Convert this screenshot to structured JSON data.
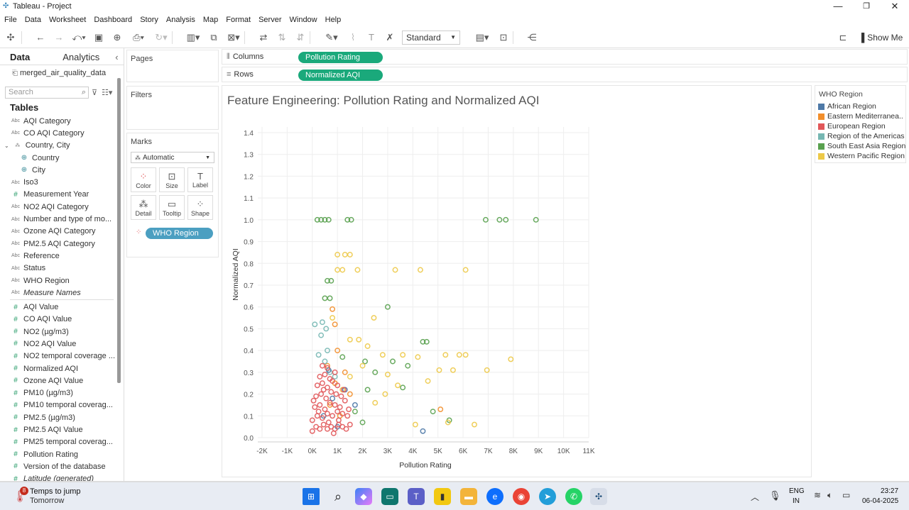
{
  "window": {
    "title": "Tableau - Project",
    "minimize": "—",
    "maximize": "❐",
    "close": "✕"
  },
  "menu": [
    "File",
    "Data",
    "Worksheet",
    "Dashboard",
    "Story",
    "Analysis",
    "Map",
    "Format",
    "Server",
    "Window",
    "Help"
  ],
  "toolbar": {
    "fit": "Standard",
    "show_me": "Show Me"
  },
  "left": {
    "tab_data": "Data",
    "tab_analytics": "Analytics",
    "collapse": "‹",
    "datasource": "merged_air_quality_data",
    "search_placeholder": "Search",
    "tables_label": "Tables",
    "dimensions": [
      {
        "type": "abc",
        "name": "AQI Category"
      },
      {
        "type": "abc",
        "name": "CO AQI Category"
      },
      {
        "type": "hier",
        "name": "Country, City"
      },
      {
        "type": "geo",
        "name": "Country"
      },
      {
        "type": "geo",
        "name": "City"
      },
      {
        "type": "abc",
        "name": "Iso3"
      },
      {
        "type": "hash",
        "name": "Measurement Year"
      },
      {
        "type": "abc",
        "name": "NO2 AQI Category"
      },
      {
        "type": "abc",
        "name": "Number and type of mo..."
      },
      {
        "type": "abc",
        "name": "Ozone AQI Category"
      },
      {
        "type": "abc",
        "name": "PM2.5 AQI Category"
      },
      {
        "type": "abc",
        "name": "Reference"
      },
      {
        "type": "abc",
        "name": "Status"
      },
      {
        "type": "abc",
        "name": "WHO Region"
      },
      {
        "type": "abc",
        "name": "Measure Names"
      }
    ],
    "measures": [
      "AQI Value",
      "CO AQI Value",
      "NO2 (µg/m3)",
      "NO2 AQI Value",
      "NO2 temporal coverage ...",
      "Normalized AQI",
      "Ozone AQI Value",
      "PM10 (µg/m3)",
      "PM10 temporal coverag...",
      "PM2.5 (µg/m3)",
      "PM2.5 AQI Value",
      "PM25 temporal coverag...",
      "Pollution Rating",
      "Version of the database",
      "Latitude (generated)"
    ]
  },
  "cards": {
    "pages": "Pages",
    "filters": "Filters",
    "marks": "Marks",
    "mark_type": "Automatic",
    "buttons": [
      "Color",
      "Size",
      "Label",
      "Detail",
      "Tooltip",
      "Shape"
    ],
    "color_pill": "WHO Region"
  },
  "shelves": {
    "columns_label": "Columns",
    "columns_pill": "Pollution Rating",
    "rows_label": "Rows",
    "rows_pill": "Normalized AQI"
  },
  "legend": {
    "title": "WHO Region",
    "items": [
      {
        "name": "African Region",
        "color": "#4e79a7"
      },
      {
        "name": "Eastern Mediterranea..",
        "color": "#f28e2b"
      },
      {
        "name": "European Region",
        "color": "#e15759"
      },
      {
        "name": "Region of the Americas",
        "color": "#76b7b2"
      },
      {
        "name": "South East Asia Region",
        "color": "#59a14f"
      },
      {
        "name": "Western Pacific Region",
        "color": "#edc948"
      }
    ]
  },
  "chart_data": {
    "type": "scatter",
    "title": "Feature Engineering: Pollution Rating and Normalized AQI",
    "xlabel": "Pollution Rating",
    "ylabel": "Normalized AQI",
    "xlim": [
      -2000,
      11000
    ],
    "ylim": [
      0,
      1.4
    ],
    "x_ticks": [
      "-2K",
      "-1K",
      "0K",
      "1K",
      "2K",
      "3K",
      "4K",
      "5K",
      "6K",
      "7K",
      "8K",
      "9K",
      "10K",
      "11K"
    ],
    "x_tick_values": [
      -2000,
      -1000,
      0,
      1000,
      2000,
      3000,
      4000,
      5000,
      6000,
      7000,
      8000,
      9000,
      10000,
      11000
    ],
    "y_ticks": [
      0.0,
      0.1,
      0.2,
      0.3,
      0.4,
      0.5,
      0.6,
      0.7,
      0.8,
      0.9,
      1.0,
      1.1,
      1.2,
      1.3,
      1.4
    ],
    "y_tick_labels": [
      "0.0",
      "0.1",
      "0.2",
      "0.3",
      "0.4",
      "0.5",
      "0.6",
      "0.7",
      "0.8",
      "0.9",
      "1.0",
      "1.1",
      "1.2",
      "1.3",
      "1.4"
    ],
    "grid": true,
    "marker": "open-circle",
    "series": [
      {
        "name": "South East Asia Region",
        "color": "#59a14f",
        "points": [
          [
            200,
            1.0
          ],
          [
            350,
            1.0
          ],
          [
            500,
            1.0
          ],
          [
            650,
            1.0
          ],
          [
            1400,
            1.0
          ],
          [
            1550,
            1.0
          ],
          [
            6900,
            1.0
          ],
          [
            7450,
            1.0
          ],
          [
            7700,
            1.0
          ],
          [
            8900,
            1.0
          ],
          [
            600,
            0.72
          ],
          [
            750,
            0.72
          ],
          [
            500,
            0.64
          ],
          [
            700,
            0.64
          ],
          [
            3000,
            0.6
          ],
          [
            4400,
            0.44
          ],
          [
            4550,
            0.44
          ],
          [
            1200,
            0.37
          ],
          [
            2100,
            0.35
          ],
          [
            3200,
            0.35
          ],
          [
            3800,
            0.33
          ],
          [
            2500,
            0.3
          ],
          [
            3600,
            0.23
          ],
          [
            2200,
            0.22
          ],
          [
            4800,
            0.12
          ],
          [
            5450,
            0.08
          ],
          [
            2000,
            0.07
          ],
          [
            1700,
            0.12
          ]
        ]
      },
      {
        "name": "Western Pacific Region",
        "color": "#edc948",
        "points": [
          [
            1000,
            0.84
          ],
          [
            1300,
            0.84
          ],
          [
            1500,
            0.84
          ],
          [
            1000,
            0.77
          ],
          [
            1200,
            0.77
          ],
          [
            1800,
            0.77
          ],
          [
            3300,
            0.77
          ],
          [
            4300,
            0.77
          ],
          [
            6100,
            0.77
          ],
          [
            800,
            0.55
          ],
          [
            2450,
            0.55
          ],
          [
            1500,
            0.45
          ],
          [
            1850,
            0.45
          ],
          [
            2200,
            0.42
          ],
          [
            2800,
            0.38
          ],
          [
            3600,
            0.38
          ],
          [
            4200,
            0.37
          ],
          [
            5300,
            0.38
          ],
          [
            5850,
            0.38
          ],
          [
            6100,
            0.38
          ],
          [
            7900,
            0.36
          ],
          [
            5600,
            0.31
          ],
          [
            5050,
            0.31
          ],
          [
            6950,
            0.31
          ],
          [
            4600,
            0.26
          ],
          [
            3400,
            0.24
          ],
          [
            2900,
            0.2
          ],
          [
            2500,
            0.16
          ],
          [
            4100,
            0.06
          ],
          [
            5400,
            0.07
          ],
          [
            6450,
            0.06
          ],
          [
            1500,
            0.28
          ],
          [
            2000,
            0.33
          ],
          [
            3000,
            0.29
          ],
          [
            1200,
            0.22
          ]
        ]
      },
      {
        "name": "Eastern Mediterranean Region",
        "color": "#f28e2b",
        "points": [
          [
            800,
            0.59
          ],
          [
            900,
            0.52
          ],
          [
            1000,
            0.4
          ],
          [
            1300,
            0.3
          ],
          [
            900,
            0.25
          ],
          [
            1500,
            0.2
          ],
          [
            5100,
            0.13
          ],
          [
            700,
            0.15
          ],
          [
            1100,
            0.1
          ],
          [
            600,
            0.33
          ]
        ]
      },
      {
        "name": "Region of the Americas",
        "color": "#76b7b2",
        "points": [
          [
            100,
            0.52
          ],
          [
            400,
            0.53
          ],
          [
            550,
            0.5
          ],
          [
            350,
            0.47
          ],
          [
            250,
            0.38
          ],
          [
            600,
            0.4
          ],
          [
            500,
            0.35
          ],
          [
            700,
            0.3
          ],
          [
            900,
            0.28
          ]
        ]
      },
      {
        "name": "African Region",
        "color": "#4e79a7",
        "points": [
          [
            4400,
            0.03
          ],
          [
            650,
            0.31
          ],
          [
            1300,
            0.22
          ],
          [
            1700,
            0.15
          ],
          [
            450,
            0.1
          ],
          [
            1000,
            0.05
          ],
          [
            800,
            0.18
          ]
        ]
      },
      {
        "name": "European Region",
        "color": "#e15759",
        "points": [
          [
            0,
            0.03
          ],
          [
            150,
            0.05
          ],
          [
            300,
            0.04
          ],
          [
            450,
            0.06
          ],
          [
            600,
            0.04
          ],
          [
            750,
            0.05
          ],
          [
            900,
            0.04
          ],
          [
            1050,
            0.06
          ],
          [
            1200,
            0.05
          ],
          [
            1350,
            0.04
          ],
          [
            1500,
            0.06
          ],
          [
            0,
            0.08
          ],
          [
            200,
            0.1
          ],
          [
            400,
            0.09
          ],
          [
            600,
            0.11
          ],
          [
            800,
            0.1
          ],
          [
            1000,
            0.12
          ],
          [
            1200,
            0.11
          ],
          [
            1400,
            0.1
          ],
          [
            100,
            0.14
          ],
          [
            300,
            0.15
          ],
          [
            500,
            0.13
          ],
          [
            700,
            0.16
          ],
          [
            900,
            0.15
          ],
          [
            1100,
            0.14
          ],
          [
            1300,
            0.17
          ],
          [
            150,
            0.19
          ],
          [
            350,
            0.2
          ],
          [
            550,
            0.18
          ],
          [
            750,
            0.21
          ],
          [
            950,
            0.2
          ],
          [
            1150,
            0.19
          ],
          [
            200,
            0.24
          ],
          [
            400,
            0.25
          ],
          [
            600,
            0.23
          ],
          [
            800,
            0.26
          ],
          [
            1000,
            0.24
          ],
          [
            300,
            0.28
          ],
          [
            500,
            0.29
          ],
          [
            700,
            0.27
          ],
          [
            900,
            0.3
          ],
          [
            400,
            0.33
          ],
          [
            600,
            0.32
          ],
          [
            250,
            0.12
          ],
          [
            650,
            0.07
          ],
          [
            1050,
            0.08
          ],
          [
            1450,
            0.13
          ],
          [
            850,
            0.02
          ],
          [
            50,
            0.17
          ],
          [
            450,
            0.22
          ],
          [
            1250,
            0.22
          ]
        ]
      }
    ]
  },
  "taskbar": {
    "weather_title": "Temps to jump",
    "weather_sub": "Tomorrow",
    "badge": "8",
    "lang1": "ENG",
    "lang2": "IN",
    "time": "23:27",
    "date": "06-04-2025"
  }
}
